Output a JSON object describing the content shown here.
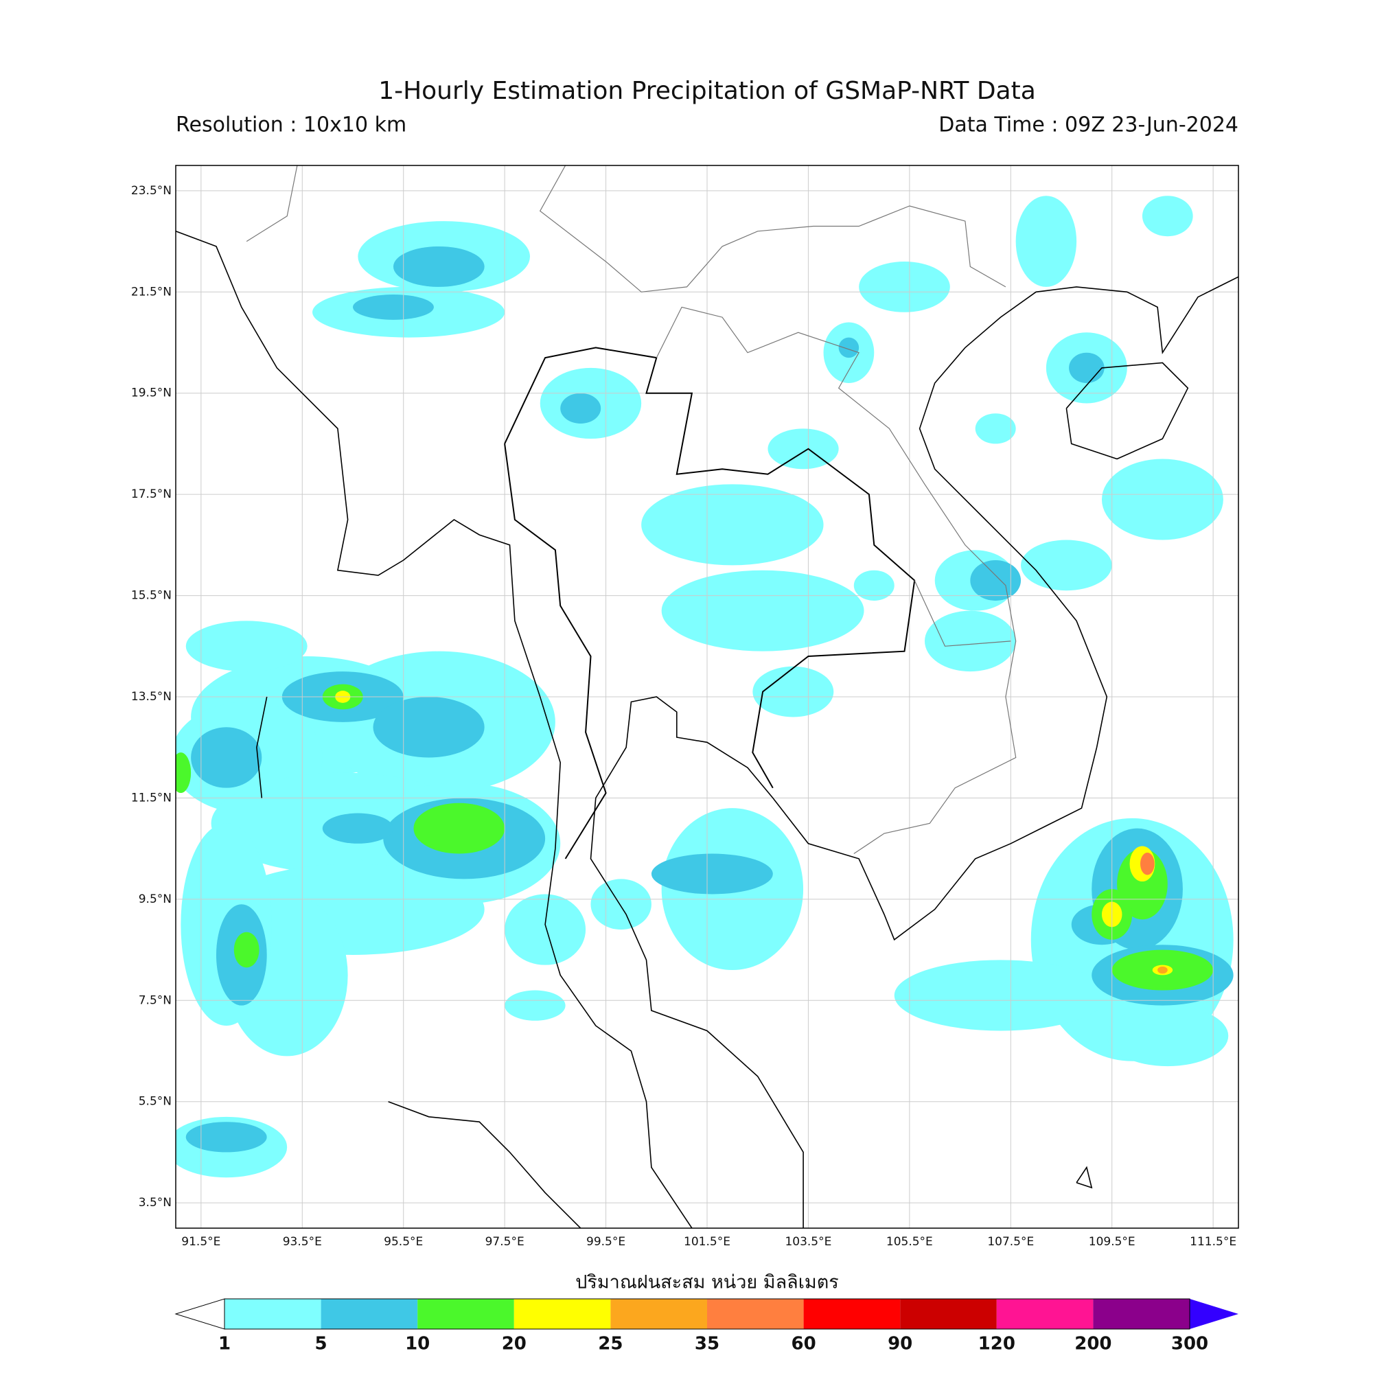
{
  "title": "1-Hourly Estimation Precipitation of GSMaP-NRT Data",
  "resolution": "Resolution : 10x10 km",
  "data_time": "Data Time : 09Z 23-Jun-2024",
  "map": {
    "lon_labels": [
      "91.5°E",
      "93.5°E",
      "95.5°E",
      "97.5°E",
      "99.5°E",
      "101.5°E",
      "103.5°E",
      "105.5°E",
      "107.5°E",
      "109.5°E",
      "111.5°E"
    ],
    "lat_labels": [
      "23.5°N",
      "21.5°N",
      "19.5°N",
      "17.5°N",
      "15.5°N",
      "13.5°N",
      "11.5°N",
      "9.5°N",
      "7.5°N",
      "5.5°N",
      "3.5°N"
    ]
  },
  "colorbar": {
    "title": "ปริมาณฝนสะสม หน่วย มิลลิเมตร",
    "levels": [
      1,
      5,
      10,
      20,
      25,
      35,
      60,
      90,
      120,
      200,
      300
    ],
    "colors": [
      "#7fffff",
      "#3fc8e6",
      "#4bf82b",
      "#ffff00",
      "#fca71e",
      "#ff7f3f",
      "#ff0000",
      "#cc0000",
      "#ff1493",
      "#8b008b"
    ],
    "under_color": "#ffffff",
    "over_color": "#3300ff"
  }
}
